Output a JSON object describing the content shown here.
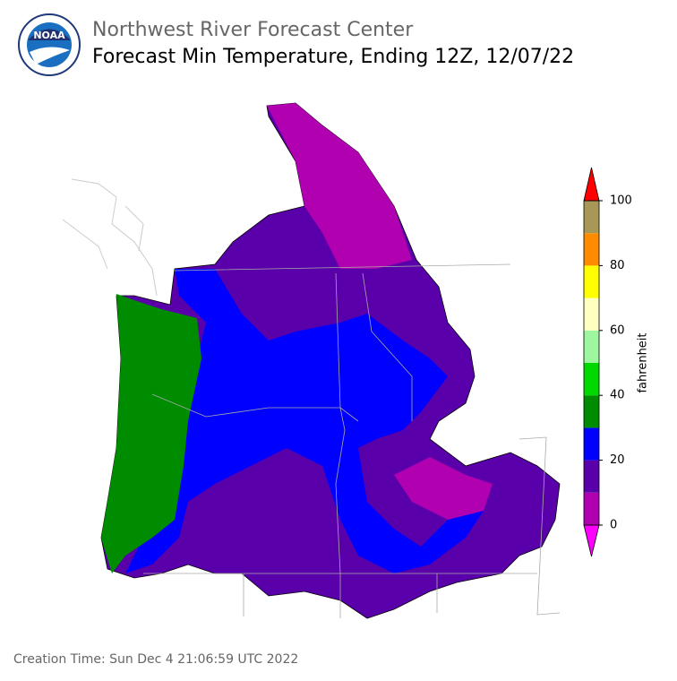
{
  "header": {
    "logo_text": "NOAA",
    "title": "Northwest River Forecast Center",
    "subtitle": "Forecast Min Temperature, Ending 12Z, 12/07/22"
  },
  "colorbar": {
    "label": "fahrenheit",
    "lim": [
      0,
      100
    ],
    "ticks": [
      0,
      20,
      40,
      60,
      80,
      100
    ],
    "bins": [
      0,
      10,
      20,
      30,
      40,
      50,
      60,
      70,
      80,
      90,
      100
    ],
    "colors": [
      "#b000b0",
      "#5a00aa",
      "#0000ff",
      "#008c00",
      "#00d800",
      "#9ef79e",
      "#ffffc0",
      "#ffff00",
      "#ff8c00",
      "#a89858"
    ],
    "under": "#ff00ff",
    "over": "#ff0000"
  },
  "footer": {
    "creation_time": "Creation Time: Sun Dec 4 21:06:59 UTC 2022"
  }
}
